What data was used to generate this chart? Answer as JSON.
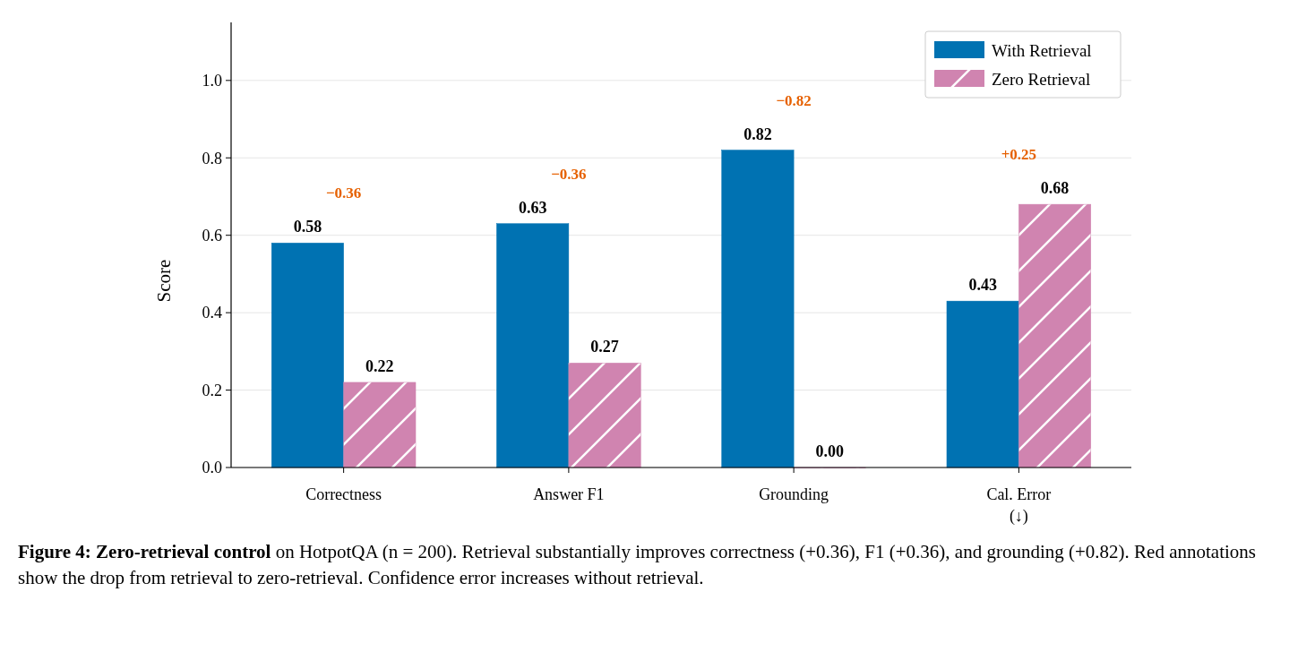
{
  "chart_data": {
    "type": "bar",
    "categories": [
      "Correctness",
      "Answer F1",
      "Grounding",
      "Cal. Error\n(↓)"
    ],
    "series": [
      {
        "name": "With Retrieval",
        "color": "#0072b2",
        "values": [
          0.58,
          0.63,
          0.82,
          0.43
        ],
        "value_labels": [
          "0.58",
          "0.63",
          "0.82",
          "0.43"
        ]
      },
      {
        "name": "Zero Retrieval",
        "color": "#d084b0",
        "values": [
          0.22,
          0.27,
          0.0,
          0.68
        ],
        "value_labels": [
          "0.22",
          "0.27",
          "0.00",
          "0.68"
        ]
      }
    ],
    "ylabel": "Score",
    "ylim": [
      0,
      1.15
    ],
    "yticks": [
      {
        "value": 0,
        "label": "0.0"
      },
      {
        "value": 0.2,
        "label": "0.2"
      },
      {
        "value": 0.4,
        "label": "0.4"
      },
      {
        "value": 0.6,
        "label": "0.6"
      },
      {
        "value": 0.8,
        "label": "0.8"
      },
      {
        "value": 1.0,
        "label": "1.0"
      }
    ],
    "grid": "y",
    "legend": "top right",
    "annotations": [
      "−0.36",
      "−0.36",
      "−0.82",
      "+0.25",
      "Figure 4: Zero-retrieval control",
      "on HotpotQA (n = 200). Retrieval substantially improves correctness (+0.36), F1 (+0.36), and grounding (+0.82). Red annotations show the drop from retrieval to zero-retrieval. Confidence error increases without retrieval."
    ]
  }
}
